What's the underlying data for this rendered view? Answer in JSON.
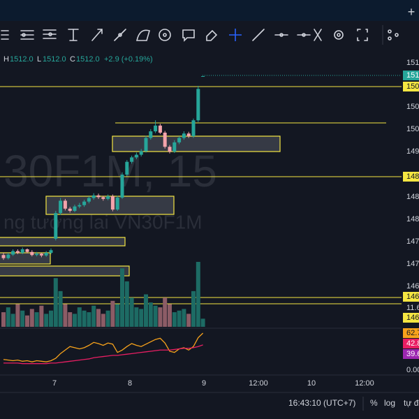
{
  "top_bar": {
    "button": "+"
  },
  "ohlc": {
    "h_label": "H",
    "h": "1512.0",
    "l_label": "L",
    "l": "1512.0",
    "c_label": "C",
    "c": "1512.0",
    "change": "+2.9 (+0.19%)"
  },
  "watermark": {
    "symbol": "30F1M, 15",
    "description": "ng tương lai VN30F1M"
  },
  "price_range": [
    1455,
    1515
  ],
  "candles": {
    "open": [
      1471.5,
      1470.8,
      1471.6,
      1472.4,
      1472.0,
      1472.8,
      1472.2,
      1471.5,
      1471.8,
      1471.4,
      1472.0,
      1475.2,
      1481.0,
      1483.8,
      1482.0,
      1481.5,
      1482.5,
      1482.8,
      1483.6,
      1484.4,
      1485.0,
      1484.6,
      1484.2,
      1484.8,
      1481.8,
      1484.5,
      1489.7,
      1492.6,
      1493.6,
      1494.2,
      1495.0,
      1498.0,
      1499.5,
      1500.8,
      1499.2,
      1496.0,
      1494.9,
      1497.0,
      1498.0,
      1499.0,
      1498.4,
      1502.0,
      1512.0
    ],
    "close": [
      1470.8,
      1471.6,
      1472.4,
      1472.0,
      1472.8,
      1472.2,
      1471.5,
      1471.8,
      1471.4,
      1472.0,
      1472.6,
      1481.0,
      1483.8,
      1482.0,
      1481.5,
      1482.5,
      1482.8,
      1483.6,
      1484.4,
      1485.0,
      1484.6,
      1484.2,
      1484.8,
      1481.8,
      1484.5,
      1489.7,
      1492.6,
      1493.6,
      1494.2,
      1495.0,
      1498.0,
      1499.5,
      1500.8,
      1499.2,
      1496.0,
      1494.9,
      1497.0,
      1498.0,
      1499.0,
      1498.4,
      1502.0,
      1509.1,
      1512.0
    ],
    "high": [
      1472.0,
      1472.0,
      1472.8,
      1472.8,
      1473.2,
      1473.0,
      1472.6,
      1472.2,
      1472.0,
      1472.4,
      1473.0,
      1481.5,
      1484.4,
      1484.2,
      1482.4,
      1482.9,
      1483.3,
      1484.0,
      1484.8,
      1485.5,
      1485.4,
      1484.9,
      1485.2,
      1485.2,
      1484.9,
      1490.2,
      1493.0,
      1494.0,
      1494.7,
      1495.5,
      1498.5,
      1500.0,
      1502.0,
      1501.2,
      1499.6,
      1496.4,
      1497.5,
      1498.4,
      1499.5,
      1499.4,
      1502.4,
      1509.8,
      1512.0
    ],
    "low": [
      1470.4,
      1470.5,
      1471.3,
      1471.7,
      1471.7,
      1471.9,
      1471.2,
      1471.2,
      1471.0,
      1471.1,
      1471.7,
      1474.8,
      1480.6,
      1481.6,
      1481.1,
      1481.2,
      1482.1,
      1482.4,
      1483.2,
      1484.0,
      1484.2,
      1483.8,
      1483.9,
      1481.4,
      1481.5,
      1484.2,
      1489.3,
      1492.2,
      1493.2,
      1493.8,
      1494.7,
      1497.6,
      1499.1,
      1498.9,
      1495.6,
      1494.5,
      1494.6,
      1496.6,
      1497.6,
      1498.0,
      1498.0,
      1501.6,
      1512.0
    ],
    "volume": [
      9,
      12,
      8,
      14,
      10,
      7,
      11,
      9,
      13,
      8,
      10,
      30,
      22,
      14,
      9,
      8,
      12,
      10,
      9,
      13,
      11,
      8,
      10,
      16,
      14,
      36,
      28,
      18,
      12,
      11,
      20,
      15,
      13,
      12,
      18,
      14,
      9,
      10,
      11,
      8,
      22,
      40,
      5
    ]
  },
  "oscillator": {
    "orange": [
      18,
      17,
      16,
      17,
      15,
      16,
      14,
      16,
      15,
      14,
      16,
      20,
      28,
      34,
      40,
      38,
      36,
      38,
      42,
      47,
      45,
      42,
      46,
      44,
      30,
      34,
      40,
      45,
      42,
      40,
      44,
      48,
      52,
      54,
      46,
      32,
      30,
      36,
      38,
      34,
      40,
      55,
      62.7
    ],
    "pink": [
      12,
      12,
      12,
      12,
      11,
      11,
      11,
      11,
      11,
      11,
      12,
      12,
      13,
      14,
      15,
      16,
      17,
      18,
      19,
      21,
      22,
      23,
      24,
      25,
      25,
      26,
      27,
      28,
      29,
      30,
      31,
      32,
      33,
      34,
      34,
      34,
      35,
      36,
      37,
      37,
      38,
      40,
      42.8
    ],
    "range": [
      0,
      100
    ]
  },
  "price_labels": [
    "151",
    "151",
    "150",
    "150",
    "150",
    "149",
    "148",
    "148",
    "148",
    "147",
    "147",
    "146",
    "146",
    "11.6",
    "146",
    "62.7",
    "42.8",
    "39.6",
    "0.00"
  ],
  "time_labels": [
    "7",
    "8",
    "9",
    "12:00",
    "10",
    "12:00"
  ],
  "bottom_bar": {
    "clock": "16:43:10 (UTC+7)",
    "percent": "%",
    "log": "log",
    "auto": "tự đ"
  }
}
